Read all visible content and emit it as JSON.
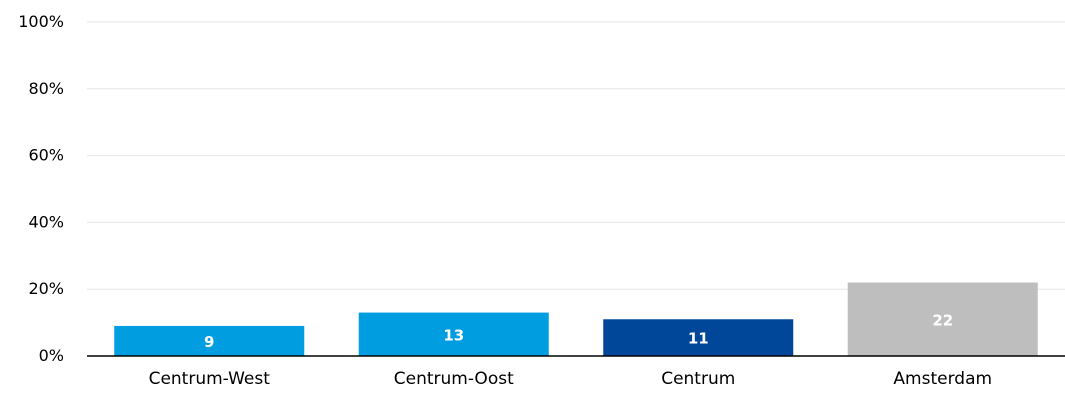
{
  "chart_data": {
    "type": "bar",
    "categories": [
      "Centrum-West",
      "Centrum-Oost",
      "Centrum",
      "Amsterdam"
    ],
    "values": [
      9,
      13,
      11,
      22
    ],
    "data_labels": [
      "9",
      "13",
      "11",
      "22"
    ],
    "colors": [
      "#009de0",
      "#009de0",
      "#004699",
      "#bebebe"
    ],
    "ylim": [
      0,
      100
    ],
    "yticks": [
      0,
      20,
      40,
      60,
      80,
      100
    ],
    "ytick_labels": [
      "0%",
      "20%",
      "40%",
      "60%",
      "80%",
      "100%"
    ],
    "grid": true,
    "gridline_color": "#e6e6e6",
    "axis_line_color": "#000000",
    "data_label_color": "#ffffff",
    "tick_label_color": "#000000"
  }
}
